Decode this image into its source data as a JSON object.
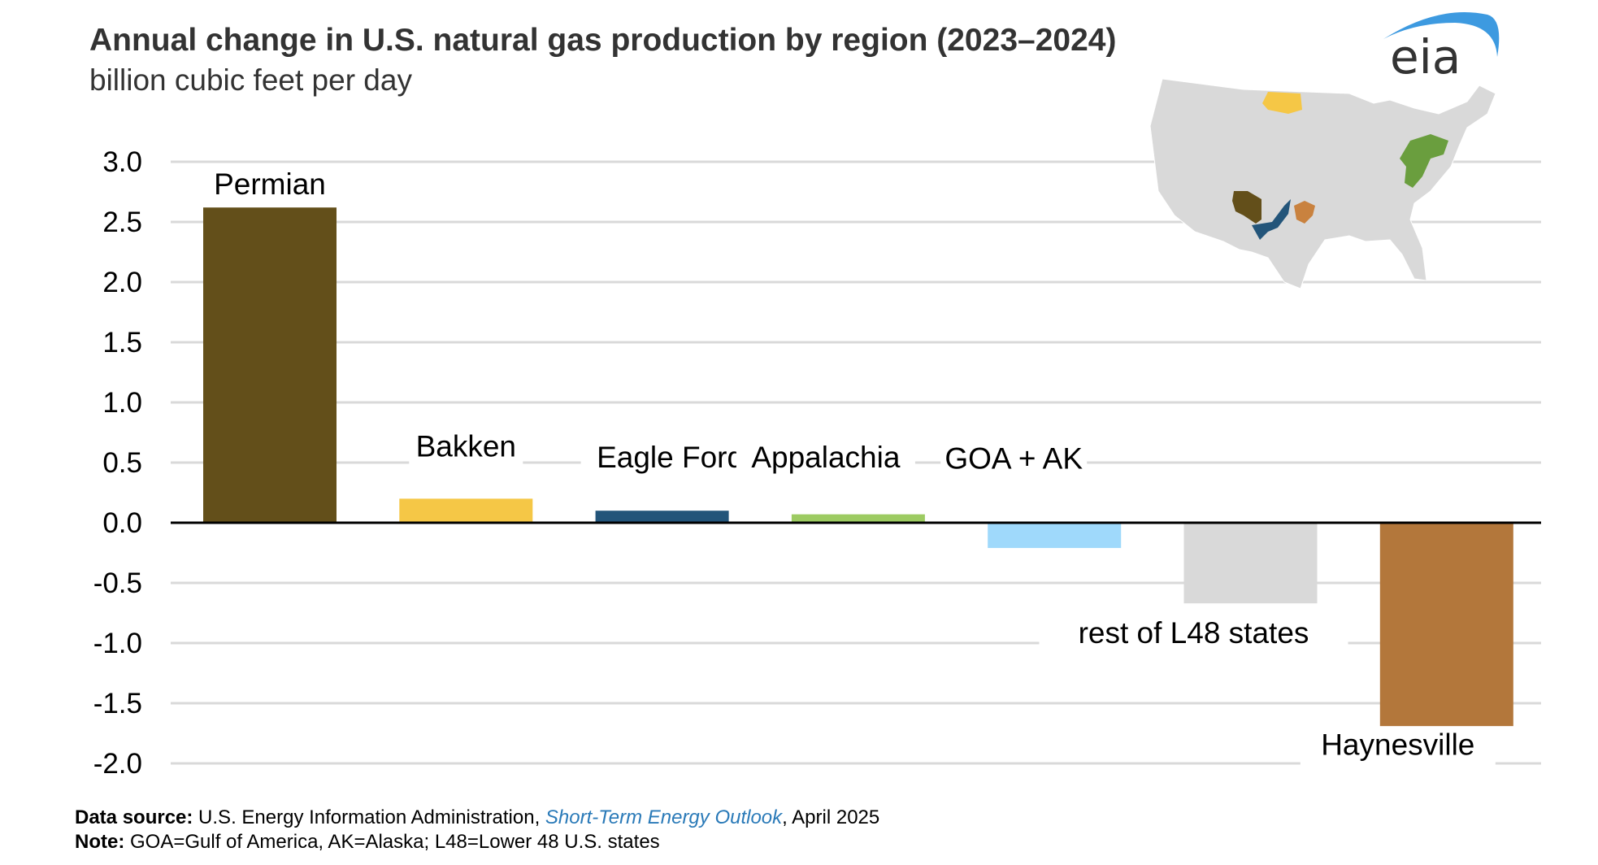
{
  "chart_data": {
    "type": "bar",
    "title": "Annual change in U.S. natural gas production by region (2023–2024)",
    "subtitle": "billion cubic feet per day",
    "xlabel": "",
    "ylabel": "billion cubic feet per day",
    "ylim": [
      -2.0,
      3.0
    ],
    "yticks": [
      "3.0",
      "2.5",
      "2.0",
      "1.5",
      "1.0",
      "0.5",
      "0.0",
      "-0.5",
      "-1.0",
      "-1.5",
      "-2.0"
    ],
    "grid": true,
    "categories": [
      "Permian",
      "Bakken",
      "Eagle Ford",
      "Appalachia",
      "GOA + AK",
      "rest of L48 states",
      "Haynesville"
    ],
    "values": [
      2.62,
      0.2,
      0.1,
      0.07,
      -0.21,
      -0.67,
      -1.69
    ],
    "colors": [
      "#634f1a",
      "#f5c746",
      "#23557a",
      "#9dcb62",
      "#9fd9fb",
      "#d9d9d9",
      "#b3773b"
    ]
  },
  "logo": {
    "text": "eia",
    "arc_color": "#3d9ae0",
    "text_color": "#333333"
  },
  "map": {
    "base_color": "#d9d9d9"
  },
  "footer": {
    "source_label": "Data source:",
    "source_pre": " U.S. Energy Information Administration, ",
    "source_pub": "Short-Term Energy Outlook",
    "source_post": ", April 2025",
    "note_label": "Note:",
    "note_text": " GOA=Gulf of America, AK=Alaska; L48=Lower 48 U.S. states"
  }
}
